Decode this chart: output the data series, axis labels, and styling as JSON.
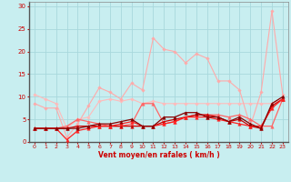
{
  "title": "",
  "xlabel": "Vent moyen/en rafales ( km/h )",
  "bg_color": "#c8eef0",
  "grid_color": "#a8d8dc",
  "xlim": [
    -0.5,
    23.5
  ],
  "ylim": [
    0,
    31
  ],
  "yticks": [
    0,
    5,
    10,
    15,
    20,
    25,
    30
  ],
  "xticks": [
    0,
    1,
    2,
    3,
    4,
    5,
    6,
    7,
    8,
    9,
    10,
    11,
    12,
    13,
    14,
    15,
    16,
    17,
    18,
    19,
    20,
    21,
    22,
    23
  ],
  "lines": [
    {
      "x": [
        0,
        1,
        2,
        3,
        4,
        5,
        6,
        7,
        8,
        9,
        10,
        11,
        12,
        13,
        14,
        15,
        16,
        17,
        18,
        19,
        20,
        21,
        22,
        23
      ],
      "y": [
        10.5,
        9.5,
        8.5,
        3.0,
        5.0,
        5.5,
        9.0,
        9.5,
        9.0,
        9.5,
        8.5,
        9.0,
        8.5,
        8.5,
        8.5,
        8.5,
        8.5,
        8.5,
        8.5,
        8.5,
        8.5,
        8.5,
        8.5,
        9.5
      ],
      "color": "#ffbbbb",
      "lw": 0.8,
      "marker": "D",
      "ms": 1.8,
      "zorder": 2
    },
    {
      "x": [
        0,
        1,
        2,
        3,
        4,
        5,
        6,
        7,
        8,
        9,
        10,
        11,
        12,
        13,
        14,
        15,
        16,
        17,
        18,
        19,
        20,
        21,
        22,
        23
      ],
      "y": [
        8.5,
        7.5,
        7.5,
        1.0,
        4.0,
        8.0,
        12.0,
        11.0,
        9.5,
        13.0,
        11.5,
        23.0,
        20.5,
        20.0,
        17.5,
        19.5,
        18.5,
        13.5,
        13.5,
        11.5,
        3.5,
        11.0,
        29.0,
        10.5
      ],
      "color": "#ffaaaa",
      "lw": 0.8,
      "marker": "D",
      "ms": 1.8,
      "zorder": 2
    },
    {
      "x": [
        0,
        1,
        2,
        3,
        4,
        5,
        6,
        7,
        8,
        9,
        10,
        11,
        12,
        13,
        14,
        15,
        16,
        17,
        18,
        19,
        20,
        21,
        22,
        23
      ],
      "y": [
        3.0,
        3.0,
        3.0,
        3.5,
        5.0,
        4.5,
        4.0,
        3.5,
        3.5,
        4.0,
        8.5,
        8.5,
        4.0,
        4.5,
        5.5,
        6.0,
        6.0,
        6.0,
        5.5,
        6.0,
        5.0,
        3.5,
        3.5,
        9.5
      ],
      "color": "#ff6666",
      "lw": 0.9,
      "marker": "^",
      "ms": 2.5,
      "zorder": 3
    },
    {
      "x": [
        0,
        1,
        2,
        3,
        4,
        5,
        6,
        7,
        8,
        9,
        10,
        11,
        12,
        13,
        14,
        15,
        16,
        17,
        18,
        19,
        20,
        21,
        22,
        23
      ],
      "y": [
        3.0,
        3.0,
        3.0,
        3.0,
        3.5,
        3.5,
        3.5,
        3.5,
        3.5,
        3.5,
        3.5,
        3.5,
        4.5,
        5.0,
        5.5,
        6.0,
        6.0,
        5.5,
        4.5,
        5.0,
        3.5,
        3.0,
        8.0,
        9.5
      ],
      "color": "#cc0000",
      "lw": 0.9,
      "marker": "^",
      "ms": 2.5,
      "zorder": 3
    },
    {
      "x": [
        0,
        1,
        2,
        3,
        4,
        5,
        6,
        7,
        8,
        9,
        10,
        11,
        12,
        13,
        14,
        15,
        16,
        17,
        18,
        19,
        20,
        21,
        22,
        23
      ],
      "y": [
        3.0,
        3.0,
        3.0,
        0.5,
        2.5,
        3.0,
        3.5,
        3.5,
        4.0,
        4.5,
        3.5,
        3.5,
        4.0,
        4.5,
        5.5,
        5.5,
        5.5,
        5.0,
        4.5,
        4.0,
        3.5,
        3.5,
        7.5,
        9.5
      ],
      "color": "#ff2222",
      "lw": 0.9,
      "marker": "^",
      "ms": 2.5,
      "zorder": 3
    },
    {
      "x": [
        0,
        1,
        2,
        3,
        4,
        5,
        6,
        7,
        8,
        9,
        10,
        11,
        12,
        13,
        14,
        15,
        16,
        17,
        18,
        19,
        20,
        21,
        22,
        23
      ],
      "y": [
        3.0,
        3.0,
        3.0,
        3.0,
        3.0,
        3.5,
        4.0,
        4.0,
        4.5,
        5.0,
        3.5,
        3.5,
        5.5,
        5.5,
        6.5,
        6.5,
        5.5,
        5.5,
        4.5,
        5.5,
        4.0,
        3.0,
        8.5,
        10.0
      ],
      "color": "#880000",
      "lw": 0.9,
      "marker": "^",
      "ms": 2.5,
      "zorder": 3
    }
  ]
}
